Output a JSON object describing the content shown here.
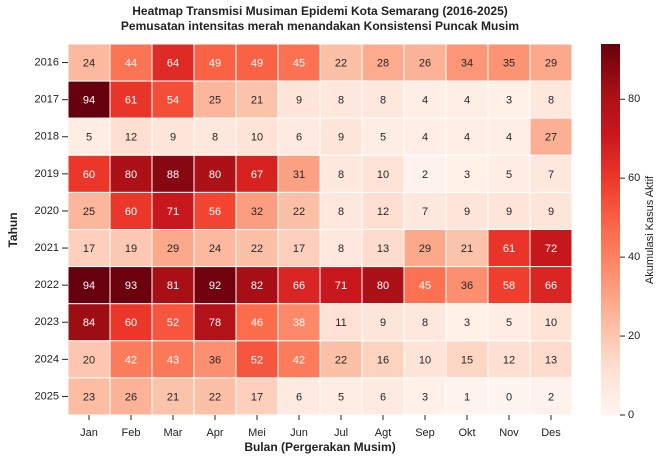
{
  "chart_data": {
    "type": "heatmap",
    "title": [
      "Heatmap Transmisi Musiman Epidemi Kota Semarang (2016-2025)",
      "Pemusatan intensitas merah menandakan Konsistensi Puncak Musim"
    ],
    "xlabel": "Bulan (Pergerakan Musim)",
    "ylabel": "Tahun",
    "colorbar_label": "Akumulasi Kasus Aktif",
    "colormap": "Reds",
    "x": [
      "Jan",
      "Feb",
      "Mar",
      "Apr",
      "Mei",
      "Jun",
      "Jul",
      "Agt",
      "Sep",
      "Okt",
      "Nov",
      "Des"
    ],
    "y": [
      "2016",
      "2017",
      "2018",
      "2019",
      "2020",
      "2021",
      "2022",
      "2023",
      "2024",
      "2025"
    ],
    "values": [
      [
        24,
        44,
        64,
        49,
        49,
        45,
        22,
        28,
        26,
        34,
        35,
        29
      ],
      [
        94,
        61,
        54,
        25,
        21,
        9,
        8,
        8,
        4,
        4,
        3,
        8
      ],
      [
        5,
        12,
        9,
        8,
        10,
        6,
        9,
        5,
        4,
        4,
        4,
        27
      ],
      [
        60,
        80,
        88,
        80,
        67,
        31,
        8,
        10,
        2,
        3,
        5,
        7
      ],
      [
        25,
        60,
        71,
        56,
        32,
        22,
        8,
        12,
        7,
        9,
        9,
        9
      ],
      [
        17,
        19,
        29,
        24,
        22,
        17,
        8,
        13,
        29,
        21,
        61,
        72
      ],
      [
        94,
        93,
        81,
        92,
        82,
        66,
        71,
        80,
        45,
        36,
        58,
        66
      ],
      [
        84,
        60,
        52,
        78,
        46,
        38,
        11,
        9,
        8,
        3,
        5,
        10
      ],
      [
        20,
        42,
        43,
        36,
        52,
        42,
        22,
        16,
        10,
        15,
        12,
        13
      ],
      [
        23,
        26,
        21,
        22,
        17,
        6,
        5,
        6,
        3,
        1,
        0,
        2
      ]
    ],
    "zlim": [
      0,
      94
    ],
    "zticks": [
      0,
      20,
      40,
      60,
      80
    ]
  }
}
